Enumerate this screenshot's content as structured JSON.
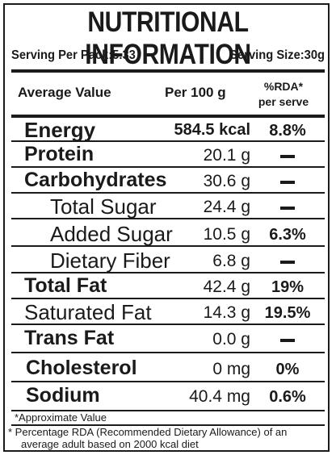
{
  "title": "NUTRITIONAL INFORMATION",
  "serving": {
    "per_pack": "Serving Per Pack:5.33",
    "size": "Serving Size:30g"
  },
  "headers": {
    "average": "Average Value",
    "per100": "Per 100 g",
    "rda_line1": "%RDA*",
    "rda_line2": "per serve"
  },
  "rows": [
    {
      "label": "Energy",
      "value": "584.5 kcal",
      "rda": "8.8%"
    },
    {
      "label": "Protein",
      "value": "20.1 g",
      "rda": ""
    },
    {
      "label": "Carbohydrates",
      "value": "30.6 g",
      "rda": ""
    },
    {
      "label": "Total Sugar",
      "value": "24.4 g",
      "rda": ""
    },
    {
      "label": "Added Sugar",
      "value": "10.5 g",
      "rda": "6.3%"
    },
    {
      "label": "Dietary Fiber",
      "value": "6.8 g",
      "rda": ""
    },
    {
      "label": "Total Fat",
      "value": "42.4 g",
      "rda": "19%"
    },
    {
      "label": "Saturated Fat",
      "value": "14.3 g",
      "rda": "19.5%"
    },
    {
      "label": "Trans Fat",
      "value": "0.0 g",
      "rda": ""
    },
    {
      "label": "Cholesterol",
      "value": "0 mg",
      "rda": "0%"
    },
    {
      "label": "Sodium",
      "value": "40.4 mg",
      "rda": "0.6%"
    }
  ],
  "footnotes": {
    "approx": "*Approximate Value",
    "rda_note_line1": "* Percentage RDA (Recommended Dietary Allowance) of an",
    "rda_note_line2": "average adult based on 2000 kcal diet"
  }
}
